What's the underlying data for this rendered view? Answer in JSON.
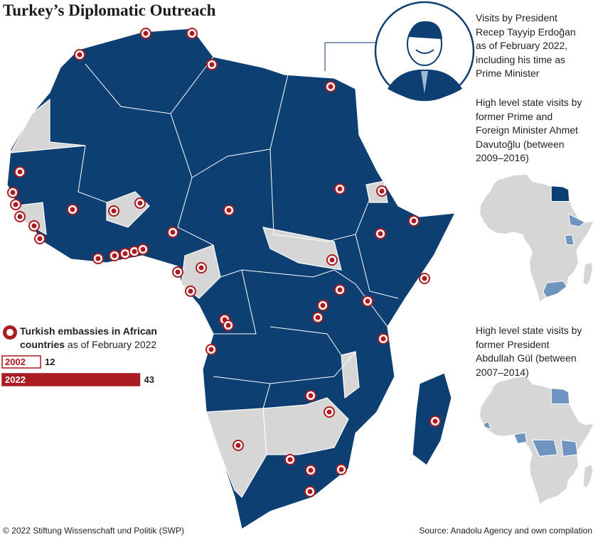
{
  "title": "Turkey’s Diplomatic Outreach",
  "legend": {
    "title_bold": "Turkish embassies in African countries",
    "title_rest": "as of February 2022",
    "bars": [
      {
        "year": "2002",
        "value": 12
      },
      {
        "year": "2022",
        "value": 43
      }
    ]
  },
  "captions": [
    "Visits by President Recep Tayyip Erdoğan as of February 2022, including his time as Prime Minister",
    "High level state visits by former Prime and Foreign Minister Ahmet Davutoğlu (between 2009–2016)",
    "High level state visits by former President Abdullah Gül (between 2007–2014)"
  ],
  "footer": {
    "copyright": "© 2022 Stiftung Wissenschaft und Politik (SWP)",
    "source": "Source: Anadolu Agency and own compilation"
  }
}
